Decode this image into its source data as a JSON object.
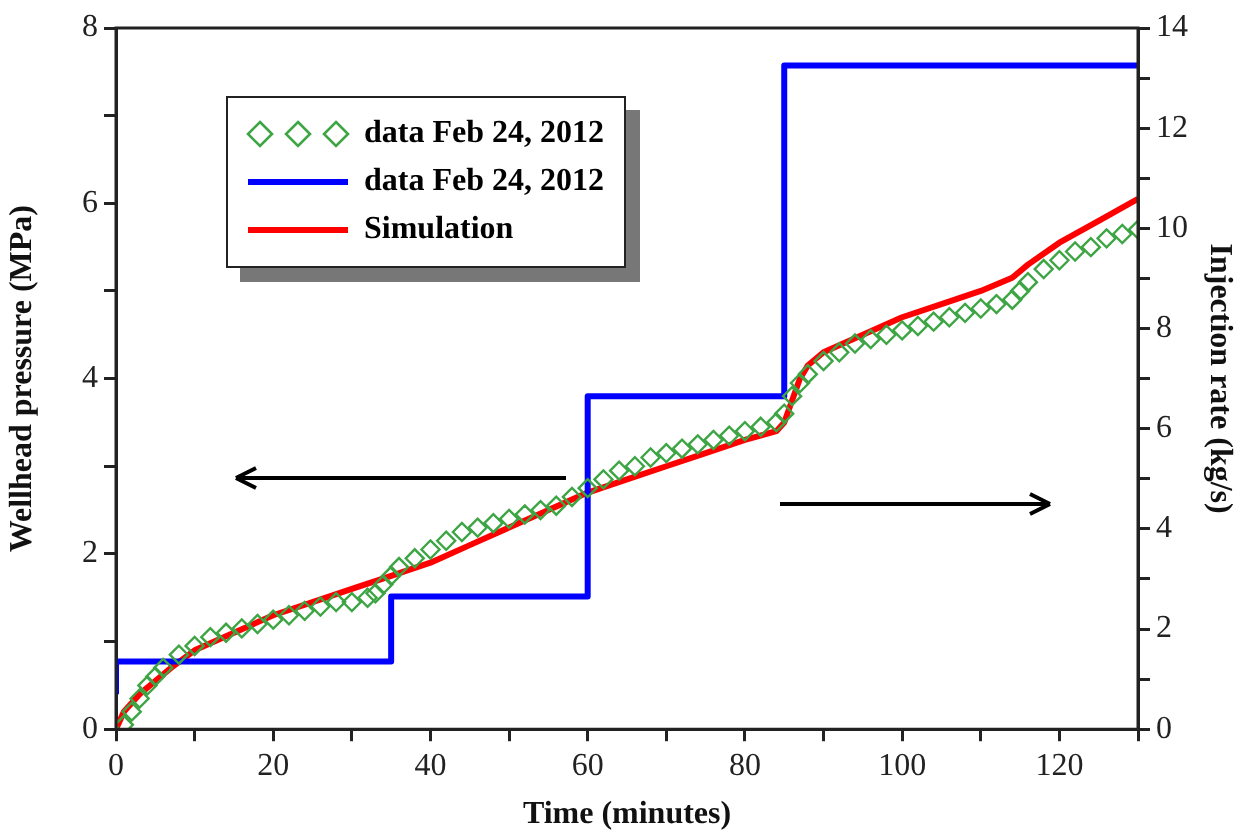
{
  "chart_data": {
    "type": "line",
    "xlabel": "Time (minutes)",
    "ylabel": "Wellhead pressure (MPa)",
    "y2label": "Injection rate (kg/s)",
    "xlim": [
      0,
      130
    ],
    "xticks": [
      0,
      {
        "value": 10,
        "label": null
      },
      20,
      {
        "value": 30,
        "label": null
      },
      40,
      {
        "value": 50,
        "label": null
      },
      60,
      {
        "value": 70,
        "label": null
      },
      80,
      {
        "value": 90,
        "label": null
      },
      100,
      {
        "value": 110,
        "label": null
      },
      120,
      {
        "value": 130,
        "label": null
      }
    ],
    "ylim": [
      0,
      8
    ],
    "yticks": [
      0,
      {
        "value": 1,
        "label": null
      },
      2,
      {
        "value": 3,
        "label": null
      },
      4,
      {
        "value": 5,
        "label": null
      },
      6,
      {
        "value": 7,
        "label": null
      },
      8
    ],
    "y2lim": [
      0,
      14
    ],
    "y2ticks": [
      0,
      {
        "value": 1,
        "label": null
      },
      2,
      {
        "value": 3,
        "label": null
      },
      4,
      {
        "value": 5,
        "label": null
      },
      6,
      {
        "value": 7,
        "label": null
      },
      8,
      {
        "value": 9,
        "label": null
      },
      10,
      {
        "value": 11,
        "label": null
      },
      12,
      {
        "value": 13,
        "label": null
      },
      14
    ],
    "grid": false,
    "legend": "top left",
    "series": [
      {
        "name": "data Feb 24, 2012",
        "type": "scatter",
        "marker": "diamond",
        "color": "#3da544",
        "x": [
          1,
          2,
          3,
          4,
          5,
          6,
          8,
          10,
          12,
          14,
          16,
          18,
          20,
          22,
          24,
          26,
          28,
          30,
          32,
          33,
          34,
          35,
          36,
          38,
          40,
          42,
          44,
          46,
          48,
          50,
          52,
          54,
          56,
          58,
          60,
          62,
          64,
          66,
          68,
          70,
          72,
          74,
          76,
          78,
          80,
          82,
          84,
          85,
          86,
          87,
          88,
          90,
          92,
          94,
          96,
          98,
          100,
          102,
          104,
          106,
          108,
          110,
          112,
          114,
          115,
          116,
          118,
          120,
          122,
          124,
          126,
          128,
          130
        ],
        "values": [
          0.05,
          0.2,
          0.35,
          0.5,
          0.6,
          0.7,
          0.85,
          0.95,
          1.05,
          1.1,
          1.15,
          1.2,
          1.25,
          1.3,
          1.35,
          1.4,
          1.45,
          1.45,
          1.5,
          1.55,
          1.65,
          1.75,
          1.85,
          1.95,
          2.05,
          2.15,
          2.25,
          2.3,
          2.35,
          2.4,
          2.45,
          2.5,
          2.55,
          2.65,
          2.75,
          2.85,
          2.95,
          3.0,
          3.1,
          3.15,
          3.2,
          3.25,
          3.3,
          3.35,
          3.4,
          3.45,
          3.5,
          3.6,
          3.8,
          3.95,
          4.05,
          4.2,
          4.3,
          4.4,
          4.45,
          4.5,
          4.55,
          4.6,
          4.65,
          4.7,
          4.75,
          4.8,
          4.85,
          4.9,
          5.0,
          5.1,
          5.25,
          5.35,
          5.45,
          5.5,
          5.6,
          5.65,
          5.7
        ]
      },
      {
        "name": "data Feb 24, 2012",
        "type": "step",
        "marker": "none",
        "axis": "y2",
        "color": "#0000ff",
        "x": [
          0,
          35,
          60,
          85,
          115,
          130
        ],
        "values": [
          0.7,
          1.35,
          2.65,
          6.65,
          13.25,
          13.25
        ]
      },
      {
        "name": "Simulation",
        "type": "line",
        "marker": "none",
        "color": "#ff0000",
        "x": [
          0,
          1,
          2,
          3,
          5,
          7,
          10,
          15,
          20,
          25,
          30,
          35,
          40,
          45,
          50,
          55,
          60,
          65,
          70,
          75,
          80,
          84,
          85,
          86,
          87,
          88,
          90,
          95,
          100,
          105,
          110,
          114,
          116,
          120,
          125,
          130
        ],
        "values": [
          0,
          0.2,
          0.3,
          0.4,
          0.55,
          0.7,
          0.9,
          1.1,
          1.3,
          1.45,
          1.6,
          1.75,
          1.9,
          2.1,
          2.3,
          2.5,
          2.7,
          2.85,
          3.0,
          3.15,
          3.3,
          3.4,
          3.5,
          3.75,
          4.0,
          4.15,
          4.3,
          4.5,
          4.7,
          4.85,
          5.0,
          5.15,
          5.3,
          5.55,
          5.8,
          6.05
        ]
      }
    ]
  }
}
